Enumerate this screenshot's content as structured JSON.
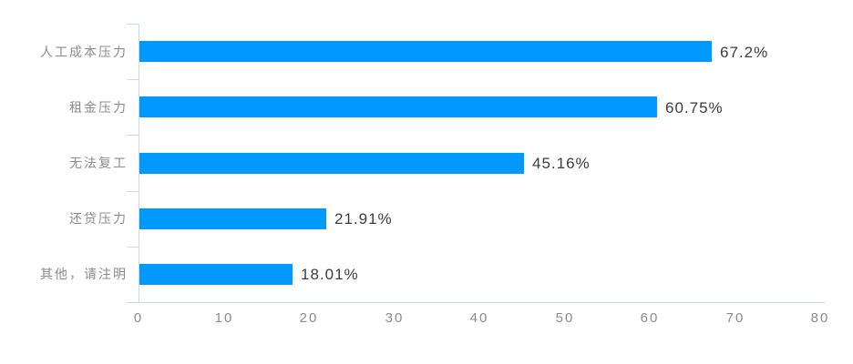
{
  "page": {
    "background": "#ffffff"
  },
  "chart_data": {
    "type": "bar",
    "orientation": "horizontal",
    "title": "",
    "xlabel": "",
    "ylabel": "",
    "categories": [
      "人工成本压力",
      "租金压力",
      "无法复工",
      "还贷压力",
      "其他，请注明"
    ],
    "values": [
      67.2,
      60.75,
      45.16,
      21.91,
      18.01
    ],
    "value_labels": [
      "67.2%",
      "60.75%",
      "45.16%",
      "21.91%",
      "18.01%"
    ],
    "x_ticks": [
      "0",
      "10",
      "20",
      "30",
      "40",
      "50",
      "60",
      "70",
      "80"
    ],
    "xlim": [
      0,
      80
    ],
    "grid": false,
    "legend": false,
    "bar_color": "#0099ff",
    "axis_color": "#ccd9e8",
    "category_label_color": "#8c8c8c",
    "value_label_color": "#3c3c3c",
    "tick_label_color": "#8b8b8b"
  }
}
